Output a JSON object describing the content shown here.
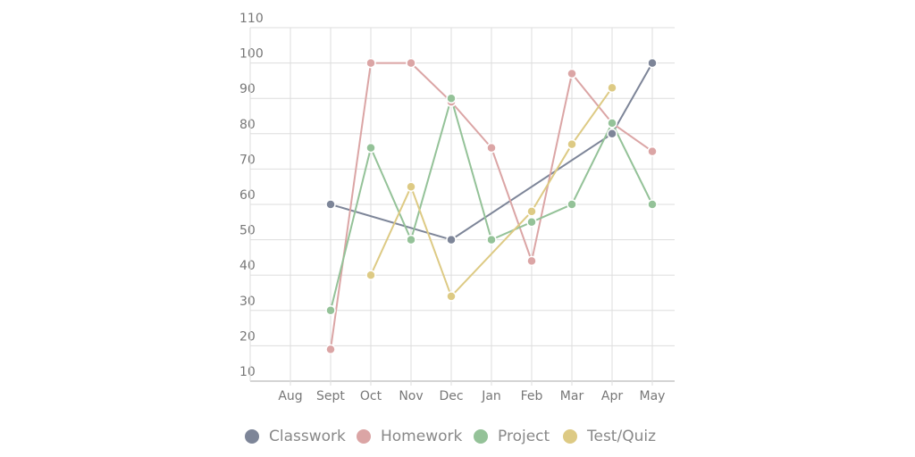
{
  "chart_data": {
    "type": "line",
    "categories": [
      "Aug",
      "Sept",
      "Oct",
      "Nov",
      "Dec",
      "Jan",
      "Feb",
      "Mar",
      "Apr",
      "May"
    ],
    "series": [
      {
        "name": "Classwork",
        "color": "#7d8598",
        "values": [
          null,
          60,
          null,
          null,
          50,
          null,
          null,
          null,
          80,
          100
        ]
      },
      {
        "name": "Homework",
        "color": "#dba5a5",
        "values": [
          null,
          19,
          100,
          100,
          89,
          76,
          44,
          97,
          83,
          75
        ]
      },
      {
        "name": "Project",
        "color": "#94c298",
        "values": [
          null,
          30,
          76,
          50,
          90,
          50,
          55,
          60,
          83,
          60
        ]
      },
      {
        "name": "Test/Quiz",
        "color": "#ddca84",
        "values": [
          null,
          null,
          40,
          65,
          34,
          null,
          58,
          77,
          93,
          null
        ]
      }
    ],
    "span_gaps": true,
    "ylim": [
      10,
      110
    ],
    "yticks": [
      10,
      20,
      30,
      40,
      50,
      60,
      70,
      80,
      90,
      100,
      110
    ],
    "grid": true,
    "legend": "bottom"
  }
}
